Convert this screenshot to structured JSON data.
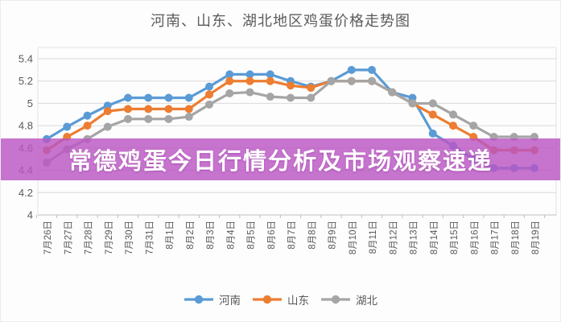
{
  "title": "河南、山东、湖北地区鸡蛋价格走势图",
  "overlay_banner": {
    "text": "常德鸡蛋今日行情分析及市场观察速递",
    "background_color": "#b956c3",
    "opacity": 0.82,
    "text_color": "#ffffff"
  },
  "axis_colors": {
    "gridline": "#d9d9d9",
    "axis_line": "#bfbfbf",
    "tick_label": "#595959",
    "plot_border": "#e2e2e2"
  },
  "chart_data": {
    "type": "line",
    "title": "河南、山东、湖北地区鸡蛋价格走势图",
    "categories": [
      "7月26日",
      "7月27日",
      "7月28日",
      "7月29日",
      "7月30日",
      "7月31日",
      "8月1日",
      "8月2日",
      "8月3日",
      "8月4日",
      "8月5日",
      "8月6日",
      "8月7日",
      "8月8日",
      "8月9日",
      "8月10日",
      "8月11日",
      "8月12日",
      "8月13日",
      "8月14日",
      "8月15日",
      "8月16日",
      "8月17日",
      "8月18日",
      "8月19日"
    ],
    "series": [
      {
        "name": "河南",
        "color": "#5B9BD5",
        "values": [
          4.68,
          4.79,
          4.89,
          4.98,
          5.05,
          5.05,
          5.05,
          5.05,
          5.15,
          5.26,
          5.26,
          5.26,
          5.2,
          5.15,
          5.2,
          5.3,
          5.3,
          5.1,
          5.05,
          4.73,
          4.62,
          4.5,
          4.42,
          4.42,
          4.42
        ]
      },
      {
        "name": "山东",
        "color": "#ED7D31",
        "values": [
          4.58,
          4.7,
          4.8,
          4.93,
          4.95,
          4.95,
          4.95,
          4.95,
          5.08,
          5.2,
          5.2,
          5.2,
          5.16,
          5.14,
          5.2,
          5.2,
          5.2,
          5.1,
          5.0,
          4.9,
          4.8,
          4.7,
          4.58,
          4.58,
          4.58
        ]
      },
      {
        "name": "湖北",
        "color": "#A5A5A5",
        "values": [
          4.47,
          4.59,
          4.68,
          4.79,
          4.86,
          4.86,
          4.86,
          4.88,
          4.99,
          5.09,
          5.1,
          5.06,
          5.05,
          5.05,
          5.2,
          5.2,
          5.2,
          5.1,
          5.0,
          5.0,
          4.9,
          4.8,
          4.7,
          4.7,
          4.7
        ]
      }
    ],
    "ylim": [
      4,
      5.4
    ],
    "y_tick_values": [
      5.4,
      5.2,
      5.0,
      4.8,
      4.6,
      4.4,
      4.2,
      4.0
    ],
    "y_tick_labels": [
      "5.4",
      "5.2",
      "5",
      "4.8",
      "4.6",
      "4.4",
      "4.2",
      "4"
    ],
    "grid": true,
    "legend_position": "bottom"
  }
}
